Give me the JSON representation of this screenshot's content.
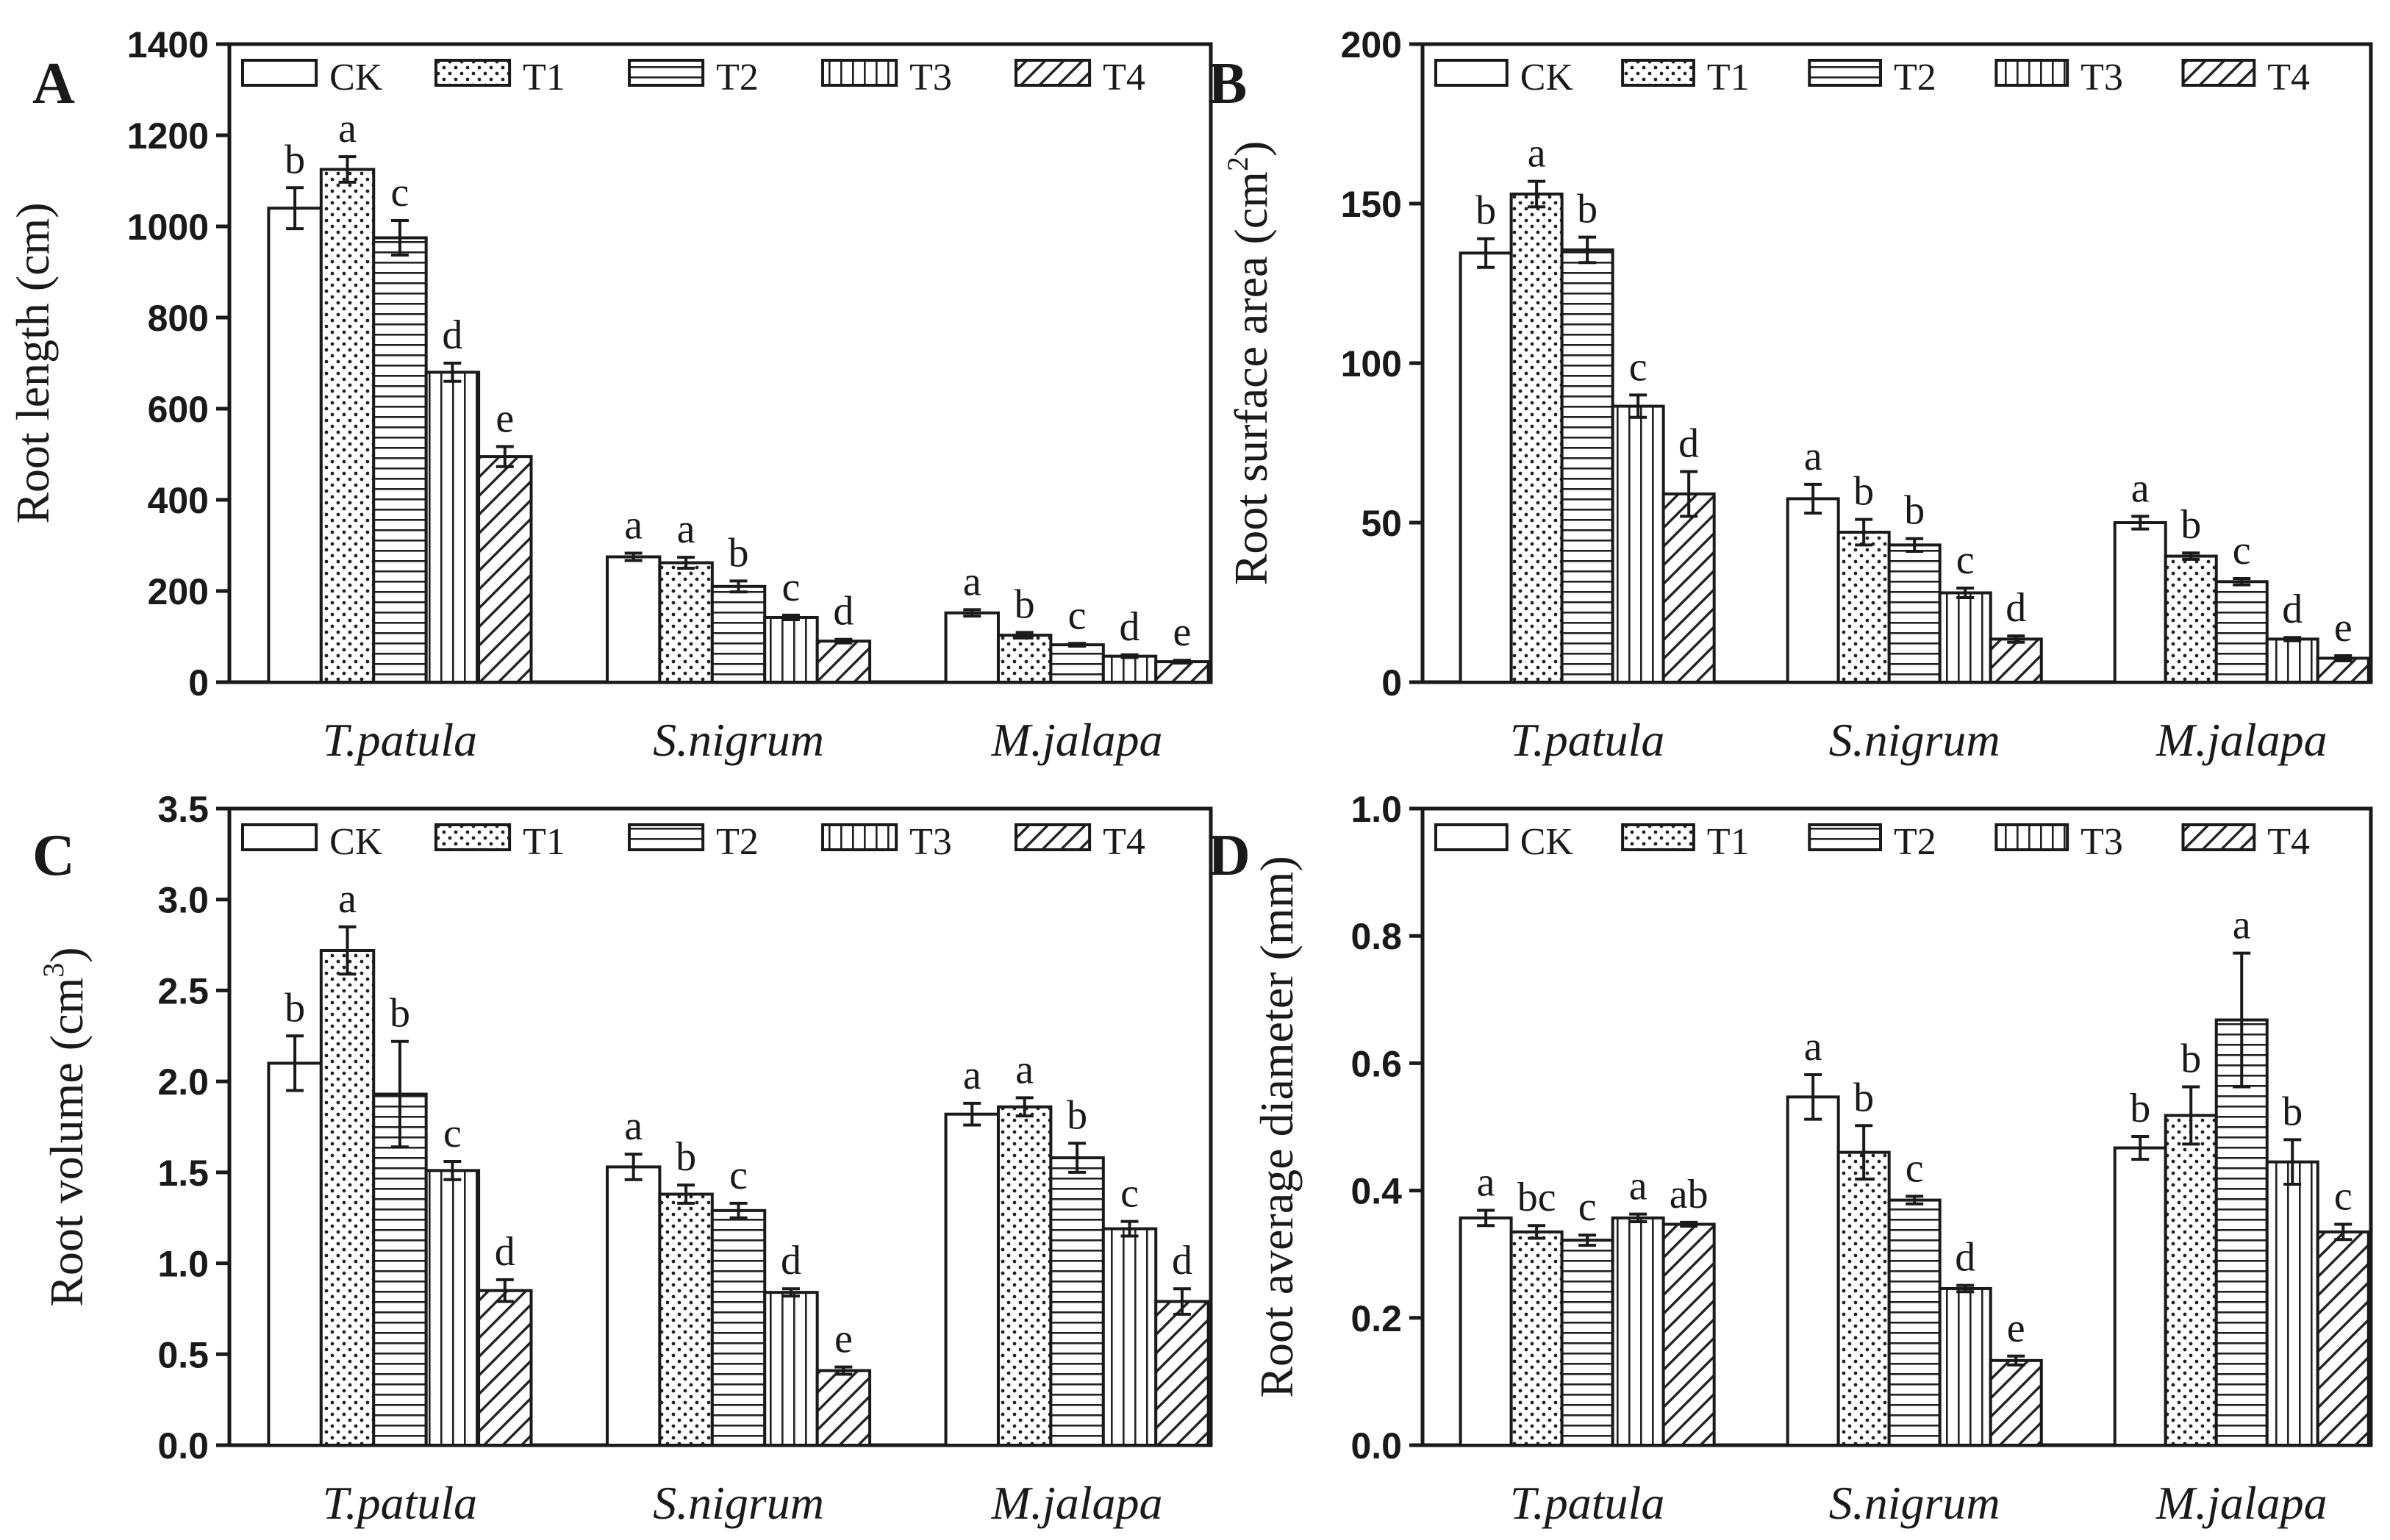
{
  "figure": {
    "legend_labels": [
      "CK",
      "T1",
      "T2",
      "T3",
      "T4"
    ]
  },
  "chart_data": [
    {
      "panel": "A",
      "type": "bar",
      "categories": [
        "T.patula",
        "S.nigrum",
        "M.jalapa"
      ],
      "ylabel": "Root length (cm)",
      "ylabel_superscript": "",
      "ylabel_suffix": "",
      "ylim": [
        0,
        1400
      ],
      "yticks": [
        "0",
        "200",
        "400",
        "600",
        "800",
        "1000",
        "1200",
        "1400"
      ],
      "ytick_values": [
        0,
        200,
        400,
        600,
        800,
        1000,
        1200,
        1400
      ],
      "series": [
        {
          "name": "CK",
          "values": [
            1040,
            275,
            152
          ],
          "errors": [
            45,
            8,
            7
          ],
          "letters": [
            "b",
            "a",
            "a"
          ]
        },
        {
          "name": "T1",
          "values": [
            1125,
            262,
            103
          ],
          "errors": [
            28,
            12,
            6
          ],
          "letters": [
            "a",
            "a",
            "b"
          ]
        },
        {
          "name": "T2",
          "values": [
            975,
            210,
            82
          ],
          "errors": [
            38,
            12,
            3
          ],
          "letters": [
            "c",
            "b",
            "c"
          ]
        },
        {
          "name": "T3",
          "values": [
            680,
            142,
            57
          ],
          "errors": [
            20,
            5,
            3
          ],
          "letters": [
            "d",
            "c",
            "d"
          ]
        },
        {
          "name": "T4",
          "values": [
            495,
            90,
            45
          ],
          "errors": [
            22,
            4,
            3
          ],
          "letters": [
            "e",
            "d",
            "e"
          ]
        }
      ]
    },
    {
      "panel": "B",
      "type": "bar",
      "categories": [
        "T.patula",
        "S.nigrum",
        "M.jalapa"
      ],
      "ylabel": "Root surface area (cm",
      "ylabel_superscript": "2",
      "ylabel_suffix": ")",
      "ylim": [
        0,
        200
      ],
      "yticks": [
        "0",
        "50",
        "100",
        "150",
        "200"
      ],
      "ytick_values": [
        0,
        50,
        100,
        150,
        200
      ],
      "series": [
        {
          "name": "CK",
          "values": [
            134.5,
            57.5,
            50
          ],
          "errors": [
            4.5,
            4.5,
            2
          ],
          "letters": [
            "b",
            "a",
            "a"
          ]
        },
        {
          "name": "T1",
          "values": [
            153,
            47,
            39.5
          ],
          "errors": [
            4,
            4,
            1
          ],
          "letters": [
            "a",
            "b",
            "b"
          ]
        },
        {
          "name": "T2",
          "values": [
            135.5,
            43,
            31.5
          ],
          "errors": [
            4,
            2,
            1
          ],
          "letters": [
            "b",
            "b",
            "c"
          ]
        },
        {
          "name": "T3",
          "values": [
            86.5,
            28,
            13.5
          ],
          "errors": [
            3.5,
            1.5,
            0.5
          ],
          "letters": [
            "c",
            "c",
            "d"
          ]
        },
        {
          "name": "T4",
          "values": [
            59,
            13.5,
            7.5
          ],
          "errors": [
            7,
            1,
            0.8
          ],
          "letters": [
            "d",
            "d",
            "e"
          ]
        }
      ]
    },
    {
      "panel": "C",
      "type": "bar",
      "categories": [
        "T.patula",
        "S.nigrum",
        "M.jalapa"
      ],
      "ylabel": "Root volume (cm",
      "ylabel_superscript": "3",
      "ylabel_suffix": ")",
      "ylim": [
        0,
        3.5
      ],
      "yticks": [
        "0.0",
        "0.5",
        "1.0",
        "1.5",
        "2.0",
        "2.5",
        "3.0",
        "3.5"
      ],
      "ytick_values": [
        0,
        0.5,
        1.0,
        1.5,
        2.0,
        2.5,
        3.0,
        3.5
      ],
      "series": [
        {
          "name": "CK",
          "values": [
            2.1,
            1.53,
            1.82
          ],
          "errors": [
            0.15,
            0.07,
            0.06
          ],
          "letters": [
            "b",
            "a",
            "a"
          ]
        },
        {
          "name": "T1",
          "values": [
            2.72,
            1.38,
            1.86
          ],
          "errors": [
            0.13,
            0.05,
            0.05
          ],
          "letters": [
            "a",
            "b",
            "a"
          ]
        },
        {
          "name": "T2",
          "values": [
            1.93,
            1.29,
            1.58
          ],
          "errors": [
            0.29,
            0.04,
            0.08
          ],
          "letters": [
            "b",
            "c",
            "b"
          ]
        },
        {
          "name": "T3",
          "values": [
            1.51,
            0.84,
            1.19
          ],
          "errors": [
            0.05,
            0.02,
            0.04
          ],
          "letters": [
            "c",
            "d",
            "c"
          ]
        },
        {
          "name": "T4",
          "values": [
            0.85,
            0.41,
            0.79
          ],
          "errors": [
            0.06,
            0.02,
            0.07
          ],
          "letters": [
            "d",
            "e",
            "d"
          ]
        }
      ]
    },
    {
      "panel": "D",
      "type": "bar",
      "categories": [
        "T.patula",
        "S.nigrum",
        "M.jalapa"
      ],
      "ylabel": "Root average diameter (mm)",
      "ylabel_superscript": "",
      "ylabel_suffix": "",
      "ylim": [
        0,
        1.0
      ],
      "yticks": [
        "0.0",
        "0.2",
        "0.4",
        "0.6",
        "0.8",
        "1.0"
      ],
      "ytick_values": [
        0,
        0.2,
        0.4,
        0.6,
        0.8,
        1.0
      ],
      "series": [
        {
          "name": "CK",
          "values": [
            0.357,
            0.547,
            0.467
          ],
          "errors": [
            0.012,
            0.035,
            0.018
          ],
          "letters": [
            "a",
            "a",
            "b"
          ]
        },
        {
          "name": "T1",
          "values": [
            0.335,
            0.46,
            0.518
          ],
          "errors": [
            0.01,
            0.042,
            0.045
          ],
          "letters": [
            "bc",
            "b",
            "b"
          ]
        },
        {
          "name": "T2",
          "values": [
            0.322,
            0.385,
            0.668
          ],
          "errors": [
            0.008,
            0.006,
            0.105
          ],
          "letters": [
            "c",
            "c",
            "a"
          ]
        },
        {
          "name": "T3",
          "values": [
            0.357,
            0.246,
            0.445
          ],
          "errors": [
            0.006,
            0.005,
            0.035
          ],
          "letters": [
            "a",
            "d",
            "b"
          ]
        },
        {
          "name": "T4",
          "values": [
            0.347,
            0.133,
            0.335
          ],
          "errors": [
            0.003,
            0.007,
            0.012
          ],
          "letters": [
            "ab",
            "e",
            "c"
          ]
        }
      ]
    }
  ]
}
